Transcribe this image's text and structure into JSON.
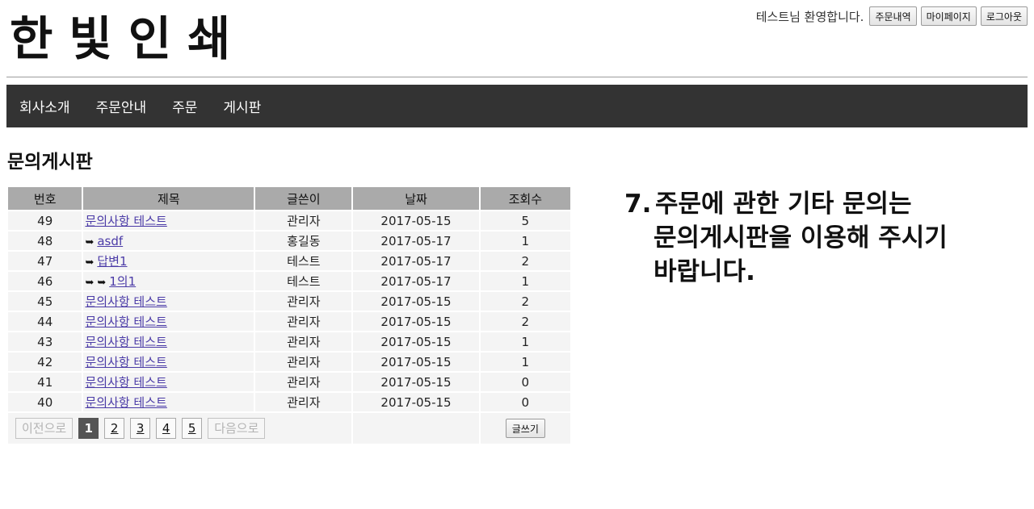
{
  "header": {
    "logo_text": "한빛인쇄",
    "welcome_text": "테스트님 환영합니다.",
    "buttons": [
      "주문내역",
      "마이페이지",
      "로그아웃"
    ]
  },
  "nav": {
    "items": [
      "회사소개",
      "주문안내",
      "주문",
      "게시판"
    ]
  },
  "board": {
    "title": "문의게시판",
    "columns": [
      "번호",
      "제목",
      "글쓴이",
      "날짜",
      "조회수"
    ],
    "rows": [
      {
        "no": "49",
        "depth": 0,
        "title": "문의사항 테스트",
        "author": "관리자",
        "date": "2017-05-15",
        "views": "5"
      },
      {
        "no": "48",
        "depth": 1,
        "title": "asdf",
        "author": "홍길동",
        "date": "2017-05-17",
        "views": "1"
      },
      {
        "no": "47",
        "depth": 1,
        "title": "답변1",
        "author": "테스트",
        "date": "2017-05-17",
        "views": "2"
      },
      {
        "no": "46",
        "depth": 2,
        "title": "1의1",
        "author": "테스트",
        "date": "2017-05-17",
        "views": "1"
      },
      {
        "no": "45",
        "depth": 0,
        "title": "문의사항 테스트",
        "author": "관리자",
        "date": "2017-05-15",
        "views": "2"
      },
      {
        "no": "44",
        "depth": 0,
        "title": "문의사항 테스트",
        "author": "관리자",
        "date": "2017-05-15",
        "views": "2"
      },
      {
        "no": "43",
        "depth": 0,
        "title": "문의사항 테스트",
        "author": "관리자",
        "date": "2017-05-15",
        "views": "1"
      },
      {
        "no": "42",
        "depth": 0,
        "title": "문의사항 테스트",
        "author": "관리자",
        "date": "2017-05-15",
        "views": "1"
      },
      {
        "no": "41",
        "depth": 0,
        "title": "문의사항 테스트",
        "author": "관리자",
        "date": "2017-05-15",
        "views": "0"
      },
      {
        "no": "40",
        "depth": 0,
        "title": "문의사항 테스트",
        "author": "관리자",
        "date": "2017-05-15",
        "views": "0"
      }
    ],
    "pagination": {
      "prev_label": "이전으로",
      "next_label": "다음으로",
      "pages": [
        "1",
        "2",
        "3",
        "4",
        "5"
      ],
      "current": "1"
    },
    "write_label": "글쓰기",
    "reply_icon": "reply-arrow-icon"
  },
  "notice": {
    "number": "7.",
    "lines": [
      "주문에 관한 기타 문의는",
      "문의게시판을 이용해 주시기",
      "바랍니다."
    ]
  }
}
